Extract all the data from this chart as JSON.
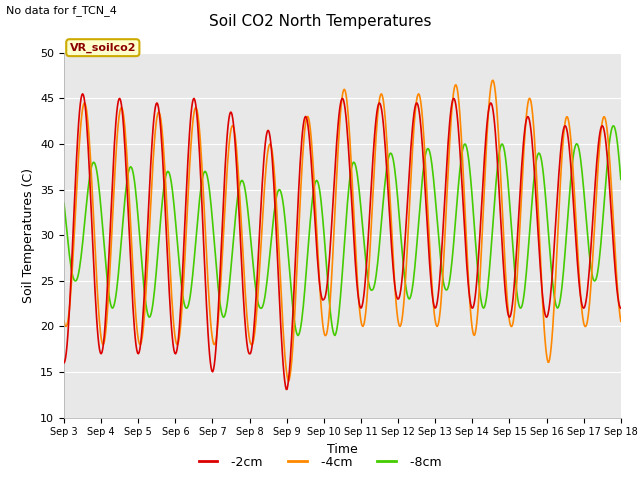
{
  "title": "Soil CO2 North Temperatures",
  "subtitle": "No data for f_TCN_4",
  "xlabel": "Time",
  "ylabel": "Soil Temperatures (C)",
  "ylim": [
    10,
    50
  ],
  "background_color": "#e8e8e8",
  "legend_box_label": "VR_soilco2",
  "series": {
    "-2cm": {
      "color": "#dd0000",
      "lw": 1.2
    },
    "-4cm": {
      "color": "#ff8800",
      "lw": 1.2
    },
    "-8cm": {
      "color": "#44cc00",
      "lw": 1.2
    }
  },
  "tick_labels": [
    "Sep 3",
    "Sep 4",
    "Sep 5",
    "Sep 6",
    "Sep 7",
    "Sep 8",
    "Sep 9",
    "Sep 10",
    "Sep 11",
    "Sep 12",
    "Sep 13",
    "Sep 14",
    "Sep 15",
    "Sep 16",
    "Sep 17",
    "Sep 18"
  ],
  "yticks": [
    10,
    15,
    20,
    25,
    30,
    35,
    40,
    45,
    50
  ],
  "peaks_2cm": [
    45,
    46,
    44,
    45,
    45,
    42,
    41,
    45,
    45,
    44,
    45,
    45,
    44,
    42,
    42
  ],
  "troughs_2cm": [
    16,
    17,
    17,
    17,
    15,
    17,
    13,
    23,
    22,
    23,
    22,
    22,
    21,
    21,
    22
  ],
  "peaks_4cm": [
    44,
    45,
    43,
    44,
    44,
    40,
    40,
    46,
    46,
    45,
    46,
    47,
    47,
    43,
    43
  ],
  "troughs_4cm": [
    20,
    18,
    18,
    18,
    18,
    18,
    14,
    19,
    20,
    20,
    20,
    19,
    20,
    16,
    20
  ],
  "peaks_8cm": [
    38,
    38,
    37,
    37,
    37,
    35,
    35,
    37,
    39,
    39,
    40,
    40,
    40,
    38,
    42
  ],
  "troughs_8cm": [
    25,
    22,
    21,
    22,
    21,
    22,
    19,
    19,
    24,
    23,
    24,
    22,
    22,
    22,
    25
  ],
  "lag_4cm": 0.05,
  "lag_8cm": 0.3,
  "n_points": 720
}
